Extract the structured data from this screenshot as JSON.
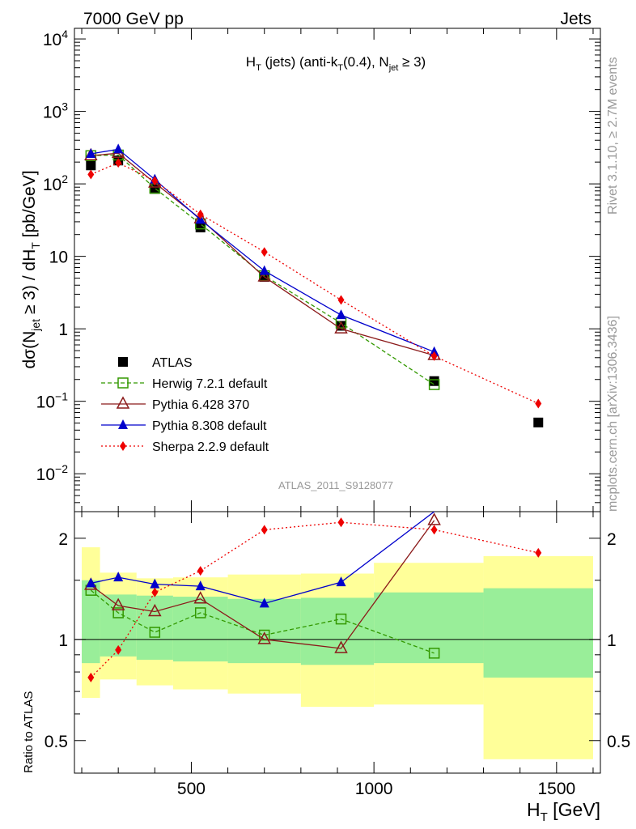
{
  "header": {
    "left": "7000 GeV pp",
    "right": "Jets"
  },
  "title": {
    "main": "H",
    "sub1": "T",
    "mid": " (jets) (anti-k",
    "sub2": "T",
    "mid2": "(0.4), N",
    "sub3": "jet",
    "end": " ≥ 3)"
  },
  "ylabel_main": {
    "a": "dσ(N",
    "sub_jet": "jet",
    "b": " ≥ 3) / dH",
    "sub_t": "T",
    "c": " [pb/GeV]"
  },
  "ylabel_ratio": "Ratio to ATLAS",
  "xlabel": {
    "a": "H",
    "sub": "T",
    "b": " [GeV]"
  },
  "analysis_id": "ATLAS_2011_S9128077",
  "side_text_top": "Rivet 3.1.10, ≥ 2.7M events",
  "side_text_bottom": "mcplots.cern.ch [arXiv:1306.3436]",
  "x_ticks": [
    "500",
    "1000",
    "1500"
  ],
  "y_ticks_main": [
    {
      "v": 10000,
      "base": "10",
      "exp": "4"
    },
    {
      "v": 1000,
      "base": "10",
      "exp": "3"
    },
    {
      "v": 100,
      "base": "10",
      "exp": "2"
    },
    {
      "v": 10,
      "base": "10",
      "exp": ""
    },
    {
      "v": 1,
      "base": "1",
      "exp": ""
    },
    {
      "v": 0.1,
      "base": "10",
      "exp": "−1"
    },
    {
      "v": 0.01,
      "base": "10",
      "exp": "−2"
    }
  ],
  "y_ticks_ratio": [
    "2",
    "1",
    "0.5"
  ],
  "chart_data": [
    {
      "type": "scatter",
      "panel": "main",
      "x_range": [
        180,
        1620
      ],
      "y_range": [
        0.003,
        14000
      ],
      "y_scale": "log",
      "legend_position": "lower-left",
      "series": [
        {
          "name": "ATLAS",
          "color": "#000000",
          "marker": "filled-square",
          "line": "none",
          "x": [
            225,
            300,
            400,
            525,
            700,
            910,
            1165,
            1450
          ],
          "y": [
            180,
            210,
            85,
            25,
            5.2,
            1.1,
            0.19,
            0.051
          ]
        },
        {
          "name": "Herwig 7.2.1 default",
          "color": "#339900",
          "marker": "open-square",
          "line": "dashed",
          "x": [
            225,
            300,
            400,
            525,
            700,
            910,
            1165
          ],
          "y": [
            245,
            250,
            87,
            28,
            5.4,
            1.2,
            0.17
          ]
        },
        {
          "name": "Pythia 6.428 370",
          "color": "#8b1a1a",
          "marker": "open-triangle",
          "line": "solid",
          "x": [
            225,
            300,
            400,
            525,
            700,
            910,
            1165
          ],
          "y": [
            245,
            265,
            103,
            33,
            5.2,
            1.0,
            0.43
          ]
        },
        {
          "name": "Pythia 8.308 default",
          "color": "#0000cc",
          "marker": "filled-triangle",
          "line": "solid",
          "x": [
            225,
            300,
            400,
            525,
            700,
            910,
            1165
          ],
          "y": [
            260,
            300,
            115,
            32,
            6.3,
            1.55,
            0.48
          ]
        },
        {
          "name": "Sherpa 2.2.9 default",
          "color": "#ee0000",
          "marker": "filled-diamond",
          "line": "dotted",
          "x": [
            225,
            300,
            400,
            525,
            700,
            910,
            1165,
            1450
          ],
          "y": [
            135,
            195,
            110,
            38,
            11.5,
            2.5,
            0.42,
            0.093
          ]
        }
      ]
    },
    {
      "type": "scatter",
      "panel": "ratio",
      "x_range": [
        180,
        1620
      ],
      "y_range": [
        0.4,
        2.4
      ],
      "y_scale": "log",
      "bands": {
        "edges": [
          200,
          250,
          350,
          450,
          600,
          800,
          1000,
          1300,
          1600
        ],
        "yellow_low": [
          0.67,
          0.76,
          0.73,
          0.71,
          0.69,
          0.63,
          0.64,
          0.44
        ],
        "yellow_high": [
          1.88,
          1.58,
          1.52,
          1.53,
          1.56,
          1.57,
          1.69,
          1.77
        ],
        "green_low": [
          0.85,
          0.89,
          0.87,
          0.86,
          0.85,
          0.84,
          0.85,
          0.77
        ],
        "green_high": [
          1.5,
          1.36,
          1.35,
          1.34,
          1.32,
          1.33,
          1.38,
          1.42
        ]
      },
      "series": [
        {
          "name": "Herwig 7.2.1 default",
          "x": [
            225,
            300,
            400,
            525,
            700,
            910,
            1165
          ],
          "y": [
            1.4,
            1.2,
            1.05,
            1.2,
            1.03,
            1.15,
            0.91
          ]
        },
        {
          "name": "Pythia 6.428 370",
          "x": [
            225,
            300,
            400,
            525,
            700,
            910,
            1165
          ],
          "y": [
            1.45,
            1.26,
            1.21,
            1.32,
            1.0,
            0.94,
            2.26
          ]
        },
        {
          "name": "Pythia 8.308 default",
          "x": [
            225,
            300,
            400,
            525,
            700,
            910,
            1165
          ],
          "y": [
            1.47,
            1.53,
            1.46,
            1.44,
            1.28,
            1.48,
            2.6
          ]
        },
        {
          "name": "Sherpa 2.2.9 default",
          "x": [
            225,
            300,
            400,
            525,
            700,
            910,
            1165,
            1450
          ],
          "y": [
            0.77,
            0.93,
            1.38,
            1.6,
            2.12,
            2.23,
            2.12,
            1.81
          ]
        }
      ]
    }
  ]
}
